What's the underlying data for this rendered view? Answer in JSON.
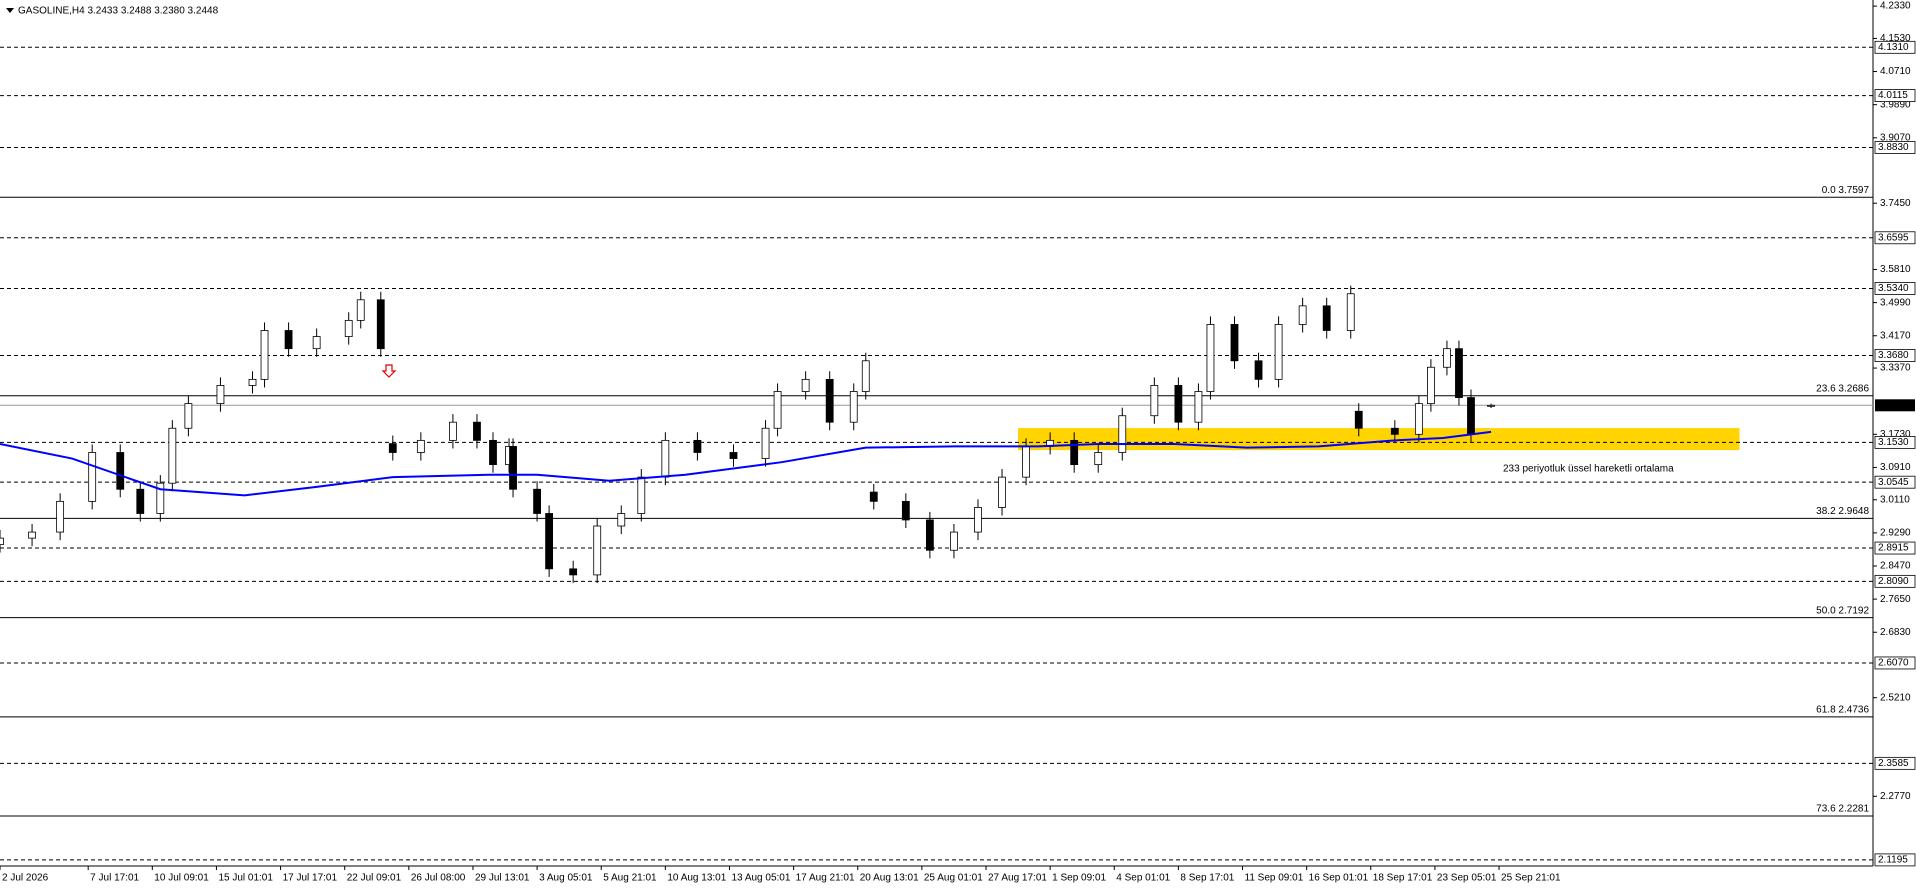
{
  "chart_data": {
    "type": "candlestick",
    "title": "GASOLINE,H4  3.2433 3.2488 3.2380 3.2448",
    "xlim": [
      0,
      467.3
    ],
    "ylim": [
      2.1044,
      4.2481
    ],
    "xticks": [
      {
        "value": 0,
        "label": "2 Jul 2026"
      },
      {
        "value": 22,
        "label": "7 Jul 17:01"
      },
      {
        "value": 38,
        "label": "10 Jul 09:01"
      },
      {
        "value": 54,
        "label": "15 Jul 01:01"
      },
      {
        "value": 70,
        "label": "17 Jul 17:01"
      },
      {
        "value": 86,
        "label": "22 Jul 09:01"
      },
      {
        "value": 102,
        "label": "26 Jul 08:00"
      },
      {
        "value": 118,
        "label": "29 Jul 13:01"
      },
      {
        "value": 134,
        "label": "3 Aug 05:01"
      },
      {
        "value": 150,
        "label": "5 Aug 21:01"
      },
      {
        "value": 166,
        "label": "10 Aug 13:01"
      },
      {
        "value": 182,
        "label": "13 Aug 05:01"
      },
      {
        "value": 198,
        "label": "17 Aug 21:01"
      },
      {
        "value": 214,
        "label": "20 Aug 13:01"
      },
      {
        "value": 230,
        "label": "25 Aug 01:01"
      },
      {
        "value": 246,
        "label": "27 Aug 17:01"
      },
      {
        "value": 262,
        "label": "1 Sep 09:01"
      },
      {
        "value": 278,
        "label": "4 Sep 01:01"
      },
      {
        "value": 294,
        "label": "8 Sep 17:01"
      },
      {
        "value": 310,
        "label": "11 Sep 09:01"
      },
      {
        "value": 326,
        "label": "16 Sep 01:01"
      },
      {
        "value": 342,
        "label": "18 Sep 17:01"
      },
      {
        "value": 358,
        "label": "23 Sep 05:01"
      },
      {
        "value": 374,
        "label": "25 Sep 21:01"
      }
    ],
    "yticks": [
      {
        "value": 4.233,
        "label": "4.2330"
      },
      {
        "value": 4.153,
        "label": "4.1530"
      },
      {
        "value": 4.071,
        "label": "4.0710"
      },
      {
        "value": 3.989,
        "label": "3.9890"
      },
      {
        "value": 3.907,
        "label": "3.9070"
      },
      {
        "value": 3.745,
        "label": "3.7450"
      },
      {
        "value": 3.581,
        "label": "3.5810"
      },
      {
        "value": 3.499,
        "label": "3.4990"
      },
      {
        "value": 3.417,
        "label": "3.4170"
      },
      {
        "value": 3.337,
        "label": "3.3370"
      },
      {
        "value": 3.173,
        "label": "3.1730"
      },
      {
        "value": 3.091,
        "label": "3.0910"
      },
      {
        "value": 3.011,
        "label": "3.0110"
      },
      {
        "value": 2.929,
        "label": "2.9290"
      },
      {
        "value": 2.847,
        "label": "2.8470"
      },
      {
        "value": 2.765,
        "label": "2.7650"
      },
      {
        "value": 2.683,
        "label": "2.6830"
      },
      {
        "value": 2.521,
        "label": "2.5210"
      },
      {
        "value": 2.277,
        "label": "2.2770"
      }
    ],
    "levels": [
      {
        "value": 4.131,
        "label": "4.1310"
      },
      {
        "value": 4.0115,
        "label": "4.0115"
      },
      {
        "value": 3.883,
        "label": "3.8830"
      },
      {
        "value": 3.6595,
        "label": "3.6595"
      },
      {
        "value": 3.534,
        "label": "3.5340"
      },
      {
        "value": 3.368,
        "label": "3.3680"
      },
      {
        "value": 3.153,
        "label": "3.1530"
      },
      {
        "value": 3.0545,
        "label": "3.0545"
      },
      {
        "value": 2.8915,
        "label": "2.8915"
      },
      {
        "value": 2.809,
        "label": "2.8090"
      },
      {
        "value": 2.607,
        "label": "2.6070"
      },
      {
        "value": 2.3585,
        "label": "2.3585"
      },
      {
        "value": 2.1195,
        "label": "2.1195"
      }
    ],
    "fib_levels": [
      {
        "value": 3.7597,
        "label": "0.0 3.7597"
      },
      {
        "value": 3.2686,
        "label": "23.6 3.2686"
      },
      {
        "value": 2.9648,
        "label": "38.2 2.9648"
      },
      {
        "value": 2.7192,
        "label": "50.0 2.7192"
      },
      {
        "value": 2.4736,
        "label": "61.8 2.4736"
      },
      {
        "value": 2.2281,
        "label": "73.6 2.2281"
      }
    ],
    "current_price": {
      "value": 3.2448,
      "label": "3.2448"
    },
    "x": [
      0,
      8,
      15,
      23,
      30,
      35,
      40,
      43,
      47,
      55,
      63,
      66,
      72,
      79,
      87,
      90,
      95,
      98,
      105,
      113,
      119,
      123,
      127,
      128,
      134,
      137,
      143,
      149,
      155,
      160,
      166,
      174,
      183,
      191,
      194,
      201,
      207,
      213,
      216,
      218,
      226,
      232,
      238,
      244,
      250,
      256,
      262,
      268,
      274,
      280,
      288,
      294,
      299,
      302,
      308,
      314,
      319,
      325,
      331,
      337,
      339,
      348,
      354,
      357,
      361,
      364,
      367,
      372
    ],
    "open": [
      2.9,
      2.916,
      2.931,
      3.007,
      3.128,
      3.037,
      2.977,
      3.052,
      3.188,
      3.249,
      3.294,
      3.309,
      3.43,
      3.385,
      3.415,
      3.455,
      3.506,
      3.15,
      3.128,
      3.158,
      3.203,
      3.158,
      3.098,
      3.143,
      3.037,
      2.977,
      2.84,
      2.825,
      2.946,
      2.977,
      3.067,
      3.158,
      3.128,
      3.113,
      3.188,
      3.279,
      3.309,
      3.203,
      3.279,
      3.03,
      3.007,
      2.961,
      2.886,
      2.931,
      2.992,
      3.067,
      3.143,
      3.158,
      3.098,
      3.128,
      3.219,
      3.294,
      3.203,
      3.279,
      3.445,
      3.355,
      3.309,
      3.445,
      3.491,
      3.43,
      3.23,
      3.188,
      3.173,
      3.249,
      3.339,
      3.385,
      3.264,
      3.2433
    ],
    "high": [
      2.936,
      2.951,
      3.027,
      3.148,
      3.148,
      3.057,
      3.072,
      3.208,
      3.269,
      3.314,
      3.329,
      3.45,
      3.45,
      3.435,
      3.475,
      3.526,
      3.526,
      3.17,
      3.178,
      3.223,
      3.223,
      3.178,
      3.163,
      3.163,
      3.057,
      2.997,
      2.86,
      2.966,
      2.997,
      3.087,
      3.178,
      3.178,
      3.148,
      3.208,
      3.299,
      3.329,
      3.329,
      3.299,
      3.375,
      3.05,
      3.027,
      2.981,
      2.951,
      3.012,
      3.087,
      3.163,
      3.178,
      3.178,
      3.148,
      3.239,
      3.314,
      3.314,
      3.299,
      3.465,
      3.465,
      3.375,
      3.465,
      3.511,
      3.511,
      3.541,
      3.25,
      3.208,
      3.269,
      3.359,
      3.405,
      3.405,
      3.284,
      3.2488
    ],
    "low": [
      2.88,
      2.896,
      2.911,
      2.987,
      3.017,
      2.957,
      2.957,
      3.032,
      3.168,
      3.229,
      3.274,
      3.289,
      3.365,
      3.365,
      3.395,
      3.435,
      3.365,
      3.108,
      3.108,
      3.138,
      3.138,
      3.078,
      3.078,
      3.017,
      2.957,
      2.82,
      2.805,
      2.805,
      2.926,
      2.957,
      3.047,
      3.108,
      3.093,
      3.093,
      3.168,
      3.259,
      3.183,
      3.183,
      3.259,
      2.987,
      2.941,
      2.866,
      2.866,
      2.911,
      2.972,
      3.047,
      3.123,
      3.078,
      3.078,
      3.108,
      3.199,
      3.183,
      3.183,
      3.259,
      3.335,
      3.289,
      3.289,
      3.425,
      3.41,
      3.41,
      3.168,
      3.153,
      3.153,
      3.229,
      3.319,
      3.244,
      3.153,
      3.238
    ],
    "close": [
      2.916,
      2.931,
      3.007,
      3.128,
      3.037,
      2.977,
      3.052,
      3.188,
      3.249,
      3.294,
      3.309,
      3.43,
      3.385,
      3.415,
      3.455,
      3.506,
      3.385,
      3.128,
      3.158,
      3.203,
      3.158,
      3.098,
      3.143,
      3.037,
      2.977,
      2.84,
      2.825,
      2.946,
      2.977,
      3.067,
      3.158,
      3.128,
      3.113,
      3.188,
      3.279,
      3.309,
      3.203,
      3.279,
      3.355,
      3.007,
      2.961,
      2.886,
      2.931,
      2.992,
      3.067,
      3.143,
      3.158,
      3.098,
      3.128,
      3.219,
      3.294,
      3.203,
      3.279,
      3.445,
      3.355,
      3.309,
      3.445,
      3.491,
      3.43,
      3.521,
      3.188,
      3.173,
      3.249,
      3.339,
      3.385,
      3.264,
      3.173,
      3.2448
    ],
    "ema": {
      "color": "#0000ff",
      "x": [
        0,
        18,
        40,
        61,
        79,
        98,
        122,
        134,
        152,
        171,
        195,
        216,
        238,
        259,
        274,
        293,
        311,
        329,
        348,
        360,
        372
      ],
      "values": [
        3.149,
        3.113,
        3.037,
        3.022,
        3.043,
        3.067,
        3.073,
        3.073,
        3.058,
        3.073,
        3.104,
        3.14,
        3.143,
        3.143,
        3.149,
        3.149,
        3.14,
        3.143,
        3.158,
        3.164,
        3.179
      ]
    },
    "zone": {
      "color": "#ffd400",
      "x": [
        254,
        434
      ],
      "y": [
        3.1339,
        3.1884
      ]
    },
    "annotation": "233 periyotluk üssel hareketli ortalama"
  }
}
